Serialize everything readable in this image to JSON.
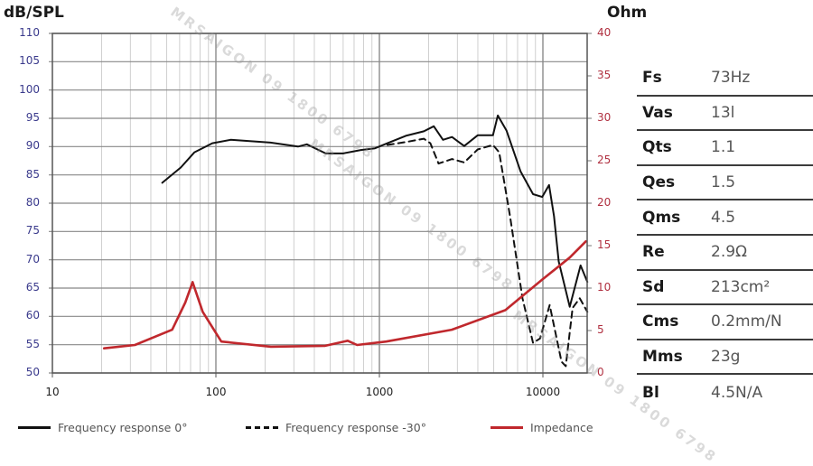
{
  "chart_data": {
    "type": "line",
    "title": "",
    "xlabel": "",
    "ylabel": "dB/SPL",
    "y2label": "Ohm",
    "xscale": "log",
    "xlim": [
      10,
      20000
    ],
    "ylim": [
      50,
      110
    ],
    "y2lim": [
      0,
      40
    ],
    "x_ticks": [
      "10",
      "100",
      "1000",
      "10000"
    ],
    "y_ticks": [
      "110",
      "105",
      "100",
      "95",
      "90",
      "85",
      "80",
      "75",
      "70",
      "65",
      "60",
      "55",
      "50"
    ],
    "y2_ticks": [
      "40",
      "35",
      "30",
      "25",
      "20",
      "15",
      "10",
      "5",
      "0"
    ],
    "grid": true,
    "legend_position": "bottom",
    "series": [
      {
        "name": "Frequency response 0°",
        "axis": "left",
        "color": "#111111",
        "style": "solid",
        "points": [
          [
            47,
            83.6
          ],
          [
            61,
            86.3
          ],
          [
            74,
            89
          ],
          [
            95,
            90.6
          ],
          [
            123,
            91.2
          ],
          [
            216,
            90.7
          ],
          [
            318,
            90
          ],
          [
            360,
            90.4
          ],
          [
            470,
            88.8
          ],
          [
            600,
            88.8
          ],
          [
            770,
            89.4
          ],
          [
            940,
            89.7
          ],
          [
            1120,
            90.6
          ],
          [
            1450,
            91.9
          ],
          [
            1870,
            92.7
          ],
          [
            2150,
            93.6
          ],
          [
            2450,
            91.2
          ],
          [
            2780,
            91.7
          ],
          [
            3300,
            90.1
          ],
          [
            3990,
            92
          ],
          [
            4950,
            92
          ],
          [
            5300,
            95.5
          ],
          [
            6000,
            92.8
          ],
          [
            7300,
            85.6
          ],
          [
            8700,
            81.6
          ],
          [
            9900,
            81.1
          ],
          [
            10900,
            83.2
          ],
          [
            11700,
            77.7
          ],
          [
            12500,
            69.7
          ],
          [
            14600,
            61.7
          ],
          [
            17000,
            69
          ],
          [
            18700,
            66.1
          ]
        ]
      },
      {
        "name": "Frequency response -30°",
        "axis": "left",
        "color": "#111111",
        "style": "dashed",
        "points": [
          [
            1120,
            90.3
          ],
          [
            1450,
            90.8
          ],
          [
            1870,
            91.4
          ],
          [
            2050,
            90.6
          ],
          [
            2300,
            87
          ],
          [
            2780,
            87.8
          ],
          [
            3300,
            87.2
          ],
          [
            3990,
            89.5
          ],
          [
            4950,
            90.3
          ],
          [
            5400,
            89
          ],
          [
            6300,
            77.6
          ],
          [
            7500,
            63.2
          ],
          [
            8700,
            55.3
          ],
          [
            9600,
            56.1
          ],
          [
            11000,
            62
          ],
          [
            13000,
            52
          ],
          [
            13800,
            51.2
          ],
          [
            15200,
            61.5
          ],
          [
            16800,
            63.2
          ],
          [
            18700,
            60.8
          ]
        ]
      },
      {
        "name": "Impedance",
        "axis": "right",
        "color": "#c0282d",
        "style": "solid",
        "points": [
          [
            20.7,
            2.9
          ],
          [
            32,
            3.3
          ],
          [
            54,
            5.1
          ],
          [
            65,
            8.3
          ],
          [
            72,
            10.7
          ],
          [
            83,
            7.2
          ],
          [
            108,
            3.7
          ],
          [
            217,
            3.1
          ],
          [
            466,
            3.2
          ],
          [
            640,
            3.8
          ],
          [
            730,
            3.3
          ],
          [
            1100,
            3.7
          ],
          [
            2770,
            5.1
          ],
          [
            5900,
            7.4
          ],
          [
            9900,
            11
          ],
          [
            14600,
            13.6
          ],
          [
            18300,
            15.5
          ]
        ]
      }
    ]
  },
  "axes": {
    "left_title": "dB/SPL",
    "right_title": "Ohm"
  },
  "parameters": [
    {
      "name": "Fs",
      "value": "73Hz"
    },
    {
      "name": "Vas",
      "value": "13l"
    },
    {
      "name": "Qts",
      "value": "1.1"
    },
    {
      "name": "Qes",
      "value": "1.5"
    },
    {
      "name": "Qms",
      "value": "4.5"
    },
    {
      "name": "Re",
      "value": "2.9Ω"
    },
    {
      "name": "Sd",
      "value": "213cm²"
    },
    {
      "name": "Cms",
      "value": "0.2mm/N"
    },
    {
      "name": "Mms",
      "value": "23g"
    },
    {
      "name": "Bl",
      "value": "4.5N/A"
    }
  ],
  "legend": [
    {
      "label": "Frequency response 0°",
      "style": "solid",
      "color": "#111111"
    },
    {
      "label": "Frequency response -30°",
      "style": "dashed",
      "color": "#111111"
    },
    {
      "label": "Impedance",
      "style": "solid",
      "color": "#c0282d"
    }
  ],
  "watermark": {
    "text": "MRSAIGON 09 1800 6798"
  }
}
